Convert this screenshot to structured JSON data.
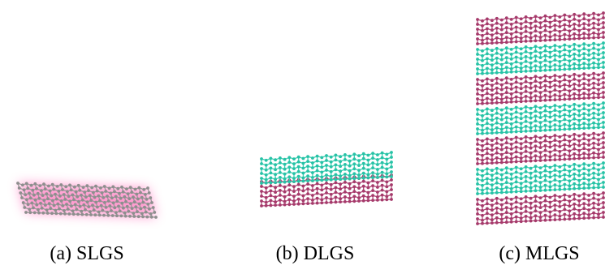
{
  "captions": {
    "slgs": "(a) SLGS",
    "dlgs": "(b) DLGS",
    "mlgs": "(c) MLGS"
  },
  "panels": {
    "slgs": {
      "layers": [
        "gray"
      ],
      "glow": "pink"
    },
    "dlgs": {
      "layers": [
        "cyan",
        "magenta"
      ]
    },
    "mlgs": {
      "layers": [
        "magenta",
        "cyan",
        "magenta",
        "cyan",
        "magenta",
        "cyan",
        "magenta"
      ]
    }
  },
  "colors": {
    "gray": {
      "bond": "#9a9a9a",
      "atom": "#8e8e8e"
    },
    "cyan": {
      "bond": "#3fcfb3",
      "atom": "#27c2a6"
    },
    "magenta": {
      "bond": "#b24a78",
      "atom": "#a53a6b"
    },
    "glow": "#ff7ac0"
  }
}
